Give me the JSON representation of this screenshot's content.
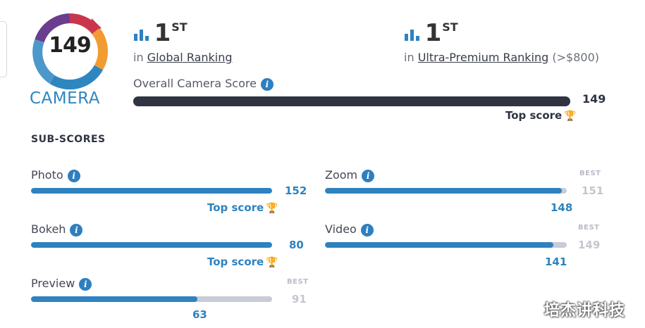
{
  "camera": {
    "score": "149",
    "label": "CAMERA",
    "ring_colors": [
      "#6a3d8f",
      "#c9364b",
      "#f39b33",
      "#2e86c1"
    ]
  },
  "rankings": [
    {
      "icon": "bar-chart-icon",
      "rank": "1",
      "suffix": "ST",
      "prefix": "in",
      "name": "Global Ranking",
      "extra": ""
    },
    {
      "icon": "bar-chart-icon",
      "rank": "1",
      "suffix": "ST",
      "prefix": "in",
      "name": "Ultra-Premium Ranking",
      "extra": "(>$800)"
    }
  ],
  "overall": {
    "label": "Overall Camera Score",
    "value": "149",
    "fill_fraction": 1.0,
    "top_score": "Top score"
  },
  "subscores_title": "SUB-SCORES",
  "subscores": [
    {
      "label": "Photo",
      "value": "152",
      "fill_fraction": 1.0,
      "top_score": "Top score"
    },
    {
      "label": "Zoom",
      "value": "148",
      "fill_fraction": 0.98,
      "best_label": "BEST",
      "best": "151"
    },
    {
      "label": "Bokeh",
      "value": "80",
      "fill_fraction": 1.0,
      "top_score": "Top score"
    },
    {
      "label": "Video",
      "value": "141",
      "fill_fraction": 0.946,
      "best_label": "BEST",
      "best": "149"
    },
    {
      "label": "Preview",
      "value": "63",
      "fill_fraction": 0.69,
      "best_label": "BEST",
      "best": "91"
    }
  ],
  "colors": {
    "accent": "#2e82c0",
    "dark": "#2f3342",
    "track": "#c9cbd6",
    "trophy": "#f4b73b"
  },
  "watermark": "培杰讲科技"
}
